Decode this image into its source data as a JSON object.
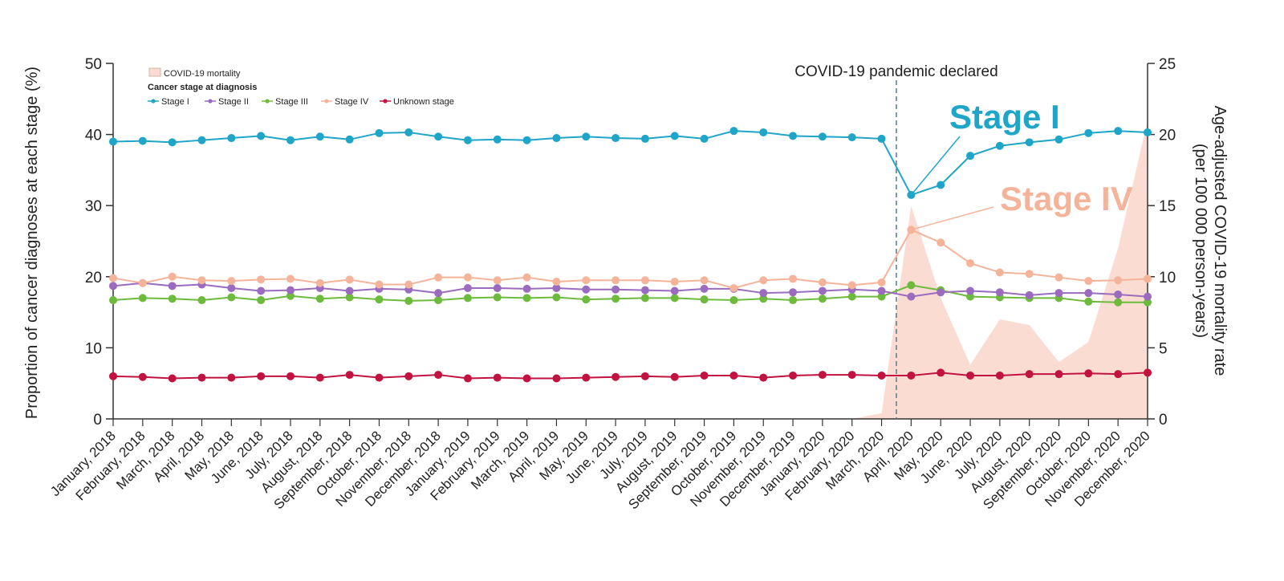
{
  "chart_data": {
    "type": "line",
    "title": "",
    "categories": [
      "January, 2018",
      "February, 2018",
      "March, 2018",
      "April, 2018",
      "May, 2018",
      "June, 2018",
      "July, 2018",
      "August, 2018",
      "September, 2018",
      "October, 2018",
      "November, 2018",
      "December, 2018",
      "January, 2019",
      "February, 2019",
      "March, 2019",
      "April, 2019",
      "May, 2019",
      "June, 2019",
      "July, 2019",
      "August, 2019",
      "September, 2019",
      "October, 2019",
      "November, 2019",
      "December, 2019",
      "January, 2020",
      "February, 2020",
      "March, 2020",
      "April, 2020",
      "May, 2020",
      "June, 2020",
      "July, 2020",
      "August, 2020",
      "September, 2020",
      "October, 2020",
      "November, 2020",
      "December, 2020"
    ],
    "ylabel": "Proportion of cancer diagnoses at each stage (%)",
    "ylabel_right_lines": [
      "Age-adjusted COVID-19 mortality rate",
      "(per 100 000 person-years)"
    ],
    "ylim": [
      0,
      50
    ],
    "y2lim": [
      0,
      25
    ],
    "yticks": [
      "0",
      "10",
      "20",
      "30",
      "40",
      "50"
    ],
    "y2ticks": [
      "0",
      "5",
      "10",
      "15",
      "20",
      "25"
    ],
    "legend_area_label": "COVID-19 mortality",
    "legend_title": "Cancer stage at diagnosis",
    "series": [
      {
        "name": "Stage I",
        "color": "#1ea5c8",
        "values": [
          39.0,
          39.1,
          38.9,
          39.2,
          39.5,
          39.8,
          39.2,
          39.7,
          39.3,
          40.2,
          40.3,
          39.7,
          39.2,
          39.3,
          39.2,
          39.5,
          39.7,
          39.5,
          39.4,
          39.8,
          39.4,
          40.5,
          40.3,
          39.8,
          39.7,
          39.6,
          39.4,
          31.5,
          32.9,
          37.0,
          38.4,
          38.9,
          39.3,
          40.2,
          40.5,
          40.3
        ]
      },
      {
        "name": "Stage II",
        "color": "#9b6bc0",
        "values": [
          18.7,
          19.1,
          18.7,
          18.9,
          18.4,
          18.0,
          18.1,
          18.4,
          18.0,
          18.3,
          18.2,
          17.7,
          18.4,
          18.4,
          18.3,
          18.4,
          18.2,
          18.2,
          18.1,
          18.0,
          18.3,
          18.3,
          17.7,
          17.8,
          18.0,
          18.2,
          18.0,
          17.2,
          17.8,
          18.0,
          17.8,
          17.4,
          17.7,
          17.7,
          17.5,
          17.2
        ]
      },
      {
        "name": "Stage III",
        "color": "#6cbb3c",
        "values": [
          16.7,
          17.0,
          16.9,
          16.7,
          17.1,
          16.7,
          17.3,
          16.9,
          17.1,
          16.8,
          16.6,
          16.7,
          17.0,
          17.1,
          17.0,
          17.1,
          16.8,
          16.9,
          17.0,
          17.0,
          16.8,
          16.7,
          16.9,
          16.7,
          16.9,
          17.2,
          17.2,
          18.8,
          18.1,
          17.2,
          17.1,
          17.0,
          17.0,
          16.5,
          16.4,
          16.4
        ]
      },
      {
        "name": "Stage IV",
        "color": "#f5b49a",
        "values": [
          19.8,
          19.1,
          20.0,
          19.5,
          19.4,
          19.6,
          19.7,
          19.1,
          19.6,
          18.9,
          18.9,
          19.9,
          19.9,
          19.5,
          19.9,
          19.3,
          19.5,
          19.5,
          19.5,
          19.3,
          19.5,
          18.4,
          19.5,
          19.7,
          19.2,
          18.8,
          19.2,
          26.6,
          24.8,
          21.9,
          20.6,
          20.4,
          19.9,
          19.4,
          19.5,
          19.7
        ]
      },
      {
        "name": "Unknown stage",
        "color": "#c2123f",
        "values": [
          6.0,
          5.9,
          5.7,
          5.8,
          5.8,
          6.0,
          6.0,
          5.8,
          6.2,
          5.8,
          6.0,
          6.2,
          5.7,
          5.8,
          5.7,
          5.7,
          5.8,
          5.9,
          6.0,
          5.9,
          6.1,
          6.1,
          5.8,
          6.1,
          6.2,
          6.2,
          6.1,
          6.1,
          6.5,
          6.1,
          6.1,
          6.3,
          6.3,
          6.4,
          6.3,
          6.5
        ]
      }
    ],
    "area": {
      "name": "COVID-19 mortality",
      "color": "#fbdcd2",
      "values": [
        0,
        0,
        0,
        0,
        0,
        0,
        0,
        0,
        0,
        0,
        0,
        0,
        0,
        0,
        0,
        0,
        0,
        0,
        0,
        0,
        0,
        0,
        0,
        0,
        0,
        0,
        0.4,
        15.0,
        8.5,
        3.8,
        7.0,
        6.6,
        4.0,
        5.4,
        12.0,
        21.0
      ]
    },
    "annotation": "COVID-19 pandemic declared",
    "big_labels": {
      "stage1": "Stage I",
      "stage4": "Stage IV"
    },
    "grid": false,
    "legend_position": "top-left"
  }
}
